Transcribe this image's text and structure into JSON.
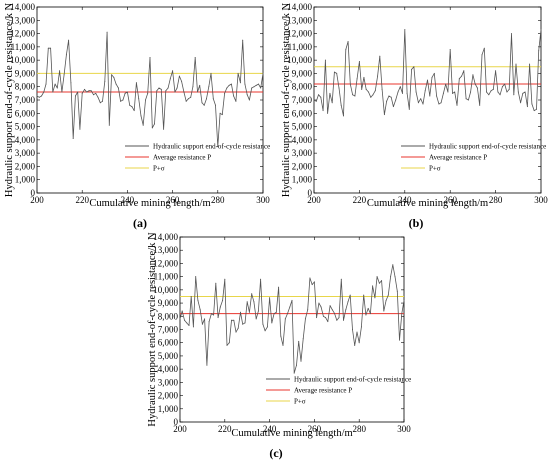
{
  "chart_data": [
    {
      "panel_label": "(a)",
      "type": "line",
      "xlabel": "Cumulative mining length/m",
      "ylabel": "Hydraulic support end-of-cycle resistance/k N",
      "xlim": [
        200,
        300
      ],
      "ylim": [
        0,
        14000
      ],
      "xticks": [
        "200",
        "220",
        "240",
        "260",
        "280",
        "300"
      ],
      "yticks": [
        "0",
        "1,000",
        "2,000",
        "3,000",
        "4,000",
        "5,000",
        "6,000",
        "7,000",
        "8,000",
        "9,000",
        "10,000",
        "11,000",
        "12,000",
        "13,000",
        "14,000"
      ],
      "grid": false,
      "legend_position": "lower-right",
      "series": [
        {
          "name": "Hydraulic support end-of-cycle resistance",
          "color": "#555555",
          "x": [
            200,
            201,
            202,
            203,
            204,
            205,
            206,
            207,
            208,
            209,
            210,
            211,
            212,
            213,
            214,
            215,
            216,
            217,
            218,
            219,
            220,
            221,
            222,
            223,
            224,
            225,
            226,
            227,
            228,
            229,
            230,
            231,
            232,
            233,
            234,
            235,
            236,
            237,
            238,
            239,
            240,
            241,
            242,
            243,
            244,
            245,
            246,
            247,
            248,
            249,
            250,
            251,
            252,
            253,
            254,
            255,
            256,
            257,
            258,
            259,
            260,
            261,
            262,
            263,
            264,
            265,
            266,
            267,
            268,
            269,
            270,
            271,
            272,
            273,
            274,
            275,
            276,
            277,
            278,
            279,
            280,
            281,
            282,
            283,
            284,
            285,
            286,
            287,
            288,
            289,
            290,
            291,
            292,
            293,
            294,
            295,
            296,
            297,
            298,
            299,
            300
          ],
          "y": [
            7300,
            7200,
            7300,
            7600,
            8200,
            10900,
            10900,
            7600,
            8200,
            7900,
            9200,
            7600,
            8900,
            10400,
            11500,
            8300,
            4100,
            7300,
            7600,
            4800,
            7500,
            7800,
            7600,
            7700,
            7700,
            7400,
            7500,
            7200,
            6800,
            6900,
            8400,
            12100,
            5100,
            8900,
            8700,
            8200,
            7900,
            6900,
            7000,
            7500,
            7600,
            6600,
            6500,
            6200,
            8300,
            7100,
            5800,
            5100,
            7000,
            7500,
            10200,
            4900,
            5200,
            7700,
            7900,
            7800,
            4800,
            7700,
            7900,
            8600,
            9200,
            7600,
            7900,
            8800,
            8400,
            7600,
            6900,
            7100,
            7200,
            8000,
            10200,
            7600,
            8100,
            6800,
            6600,
            7100,
            8000,
            9000,
            7100,
            6600,
            3500,
            6000,
            5900,
            7500,
            7900,
            8100,
            8200,
            7300,
            6900,
            9000,
            8300,
            11500,
            8200,
            7400,
            7000,
            7900,
            8000,
            8100,
            8200,
            7900,
            9000
          ]
        },
        {
          "name": "Average resistance P",
          "color": "#e8342e",
          "value": 7600
        },
        {
          "name": "P+σ",
          "color": "#e8d64a",
          "value": 9000
        }
      ]
    },
    {
      "panel_label": "(b)",
      "type": "line",
      "xlabel": "Cumulative mining length/m",
      "ylabel": "Hydraulic support end-of-cycle resistance/k N",
      "xlim": [
        200,
        300
      ],
      "ylim": [
        0,
        14000
      ],
      "xticks": [
        "200",
        "220",
        "240",
        "260",
        "280",
        "300"
      ],
      "yticks": [
        "0",
        "1,000",
        "2,000",
        "3,000",
        "4,000",
        "5,000",
        "6,000",
        "7,000",
        "8,000",
        "9,000",
        "10,000",
        "11,000",
        "12,000",
        "13,000",
        "14,000"
      ],
      "grid": false,
      "legend_position": "lower-right",
      "series": [
        {
          "name": "Hydraulic support end-of-cycle resistance",
          "color": "#555555",
          "x": [
            200,
            201,
            202,
            203,
            204,
            205,
            206,
            207,
            208,
            209,
            210,
            211,
            212,
            213,
            214,
            215,
            216,
            217,
            218,
            219,
            220,
            221,
            222,
            223,
            224,
            225,
            226,
            227,
            228,
            229,
            230,
            231,
            232,
            233,
            234,
            235,
            236,
            237,
            238,
            239,
            240,
            241,
            242,
            243,
            244,
            245,
            246,
            247,
            248,
            249,
            250,
            251,
            252,
            253,
            254,
            255,
            256,
            257,
            258,
            259,
            260,
            261,
            262,
            263,
            264,
            265,
            266,
            267,
            268,
            269,
            270,
            271,
            272,
            273,
            274,
            275,
            276,
            277,
            278,
            279,
            280,
            281,
            282,
            283,
            284,
            285,
            286,
            287,
            288,
            289,
            290,
            291,
            292,
            293,
            294,
            295,
            296,
            297,
            298,
            299,
            300
          ],
          "y": [
            7000,
            6900,
            7400,
            7200,
            6200,
            10000,
            6000,
            7500,
            6800,
            9100,
            9000,
            7900,
            6600,
            5800,
            10800,
            11400,
            8200,
            7400,
            7300,
            8600,
            9900,
            7800,
            8700,
            7800,
            7600,
            7200,
            7400,
            7700,
            8800,
            10300,
            7800,
            5900,
            6900,
            7300,
            7200,
            6500,
            7000,
            7600,
            8000,
            7500,
            12300,
            7500,
            6300,
            9300,
            9500,
            7600,
            6800,
            7100,
            6700,
            7700,
            8500,
            7300,
            8700,
            9000,
            7300,
            6700,
            6800,
            7500,
            8200,
            7600,
            10800,
            7500,
            7600,
            6600,
            8600,
            8800,
            9200,
            7100,
            7000,
            7600,
            8900,
            8200,
            7900,
            6600,
            10400,
            10900,
            7600,
            7400,
            7700,
            7800,
            9200,
            7600,
            7400,
            8000,
            8200,
            7600,
            7800,
            12000,
            7400,
            9700,
            7600,
            6800,
            7500,
            7600,
            6500,
            9700,
            6700,
            6200,
            6300,
            10700,
            12300
          ]
        },
        {
          "name": "Average resistance P",
          "color": "#e8342e",
          "value": 8200
        },
        {
          "name": "P+σ",
          "color": "#e8d64a",
          "value": 9500
        }
      ]
    },
    {
      "panel_label": "(c)",
      "type": "line",
      "xlabel": "Cumulative mining length/m",
      "ylabel": "Hydraulic support end-of-cycle resistance/k N",
      "xlim": [
        200,
        300
      ],
      "ylim": [
        0,
        14000
      ],
      "xticks": [
        "200",
        "220",
        "240",
        "260",
        "280",
        "300"
      ],
      "yticks": [
        "0",
        "1,000",
        "2,000",
        "3,000",
        "4,000",
        "5,000",
        "6,000",
        "7,000",
        "8,000",
        "9,000",
        "10,000",
        "11,000",
        "12,000",
        "13,000",
        "14,000"
      ],
      "grid": false,
      "legend_position": "lower-right",
      "series": [
        {
          "name": "Hydraulic support end-of-cycle resistance",
          "color": "#555555",
          "x": [
            200,
            201,
            202,
            203,
            204,
            205,
            206,
            207,
            208,
            209,
            210,
            211,
            212,
            213,
            214,
            215,
            216,
            217,
            218,
            219,
            220,
            221,
            222,
            223,
            224,
            225,
            226,
            227,
            228,
            229,
            230,
            231,
            232,
            233,
            234,
            235,
            236,
            237,
            238,
            239,
            240,
            241,
            242,
            243,
            244,
            245,
            246,
            247,
            248,
            249,
            250,
            251,
            252,
            253,
            254,
            255,
            256,
            257,
            258,
            259,
            260,
            261,
            262,
            263,
            264,
            265,
            266,
            267,
            268,
            269,
            270,
            271,
            272,
            273,
            274,
            275,
            276,
            277,
            278,
            279,
            280,
            281,
            282,
            283,
            284,
            285,
            286,
            287,
            288,
            289,
            290,
            291,
            292,
            293,
            294,
            295,
            296,
            297,
            298,
            299,
            300
          ],
          "y": [
            7800,
            8400,
            7700,
            7500,
            7300,
            9500,
            7200,
            11000,
            9200,
            8500,
            7400,
            7800,
            4300,
            7600,
            8200,
            8100,
            10500,
            7900,
            8700,
            9200,
            10800,
            5800,
            6000,
            7700,
            7700,
            6800,
            7100,
            8300,
            7400,
            7500,
            9100,
            8300,
            9700,
            9100,
            7800,
            8400,
            10800,
            7400,
            6900,
            7200,
            9400,
            7500,
            8200,
            8300,
            10200,
            6500,
            5800,
            7800,
            8200,
            8700,
            9200,
            3700,
            4300,
            6100,
            4600,
            6300,
            7800,
            8500,
            10900,
            10400,
            10600,
            7900,
            9000,
            8700,
            8000,
            7900,
            7600,
            8800,
            8500,
            8200,
            7700,
            7900,
            10800,
            7700,
            8500,
            9100,
            9600,
            7000,
            5800,
            6800,
            6000,
            7200,
            9600,
            8100,
            8600,
            8200,
            10300,
            9400,
            11000,
            10500,
            10700,
            8400,
            9200,
            9600,
            11000,
            11900,
            11000,
            9900,
            6200,
            8200,
            9200
          ]
        },
        {
          "name": "Average resistance P",
          "color": "#e8342e",
          "value": 8200
        },
        {
          "name": "P+σ",
          "color": "#e8d64a",
          "value": 9500
        }
      ]
    }
  ]
}
